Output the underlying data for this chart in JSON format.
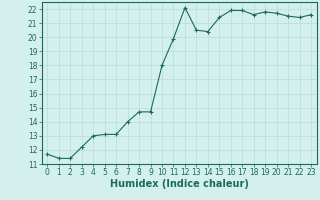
{
  "x": [
    0,
    1,
    2,
    3,
    4,
    5,
    6,
    7,
    8,
    9,
    10,
    11,
    12,
    13,
    14,
    15,
    16,
    17,
    18,
    19,
    20,
    21,
    22,
    23
  ],
  "y": [
    11.7,
    11.4,
    11.4,
    12.2,
    13.0,
    13.1,
    13.1,
    14.0,
    14.7,
    14.7,
    18.0,
    19.9,
    22.1,
    20.5,
    20.4,
    21.4,
    21.9,
    21.9,
    21.6,
    21.8,
    21.7,
    21.5,
    21.4,
    21.6
  ],
  "line_color": "#1a6b5a",
  "marker": "+",
  "marker_size": 3,
  "bg_color": "#d4f0ec",
  "grid_color": "#b8ddd8",
  "xlabel": "Humidex (Indice chaleur)",
  "xlim": [
    -0.5,
    23.5
  ],
  "ylim": [
    11,
    22.5
  ],
  "yticks": [
    11,
    12,
    13,
    14,
    15,
    16,
    17,
    18,
    19,
    20,
    21,
    22
  ],
  "xticks": [
    0,
    1,
    2,
    3,
    4,
    5,
    6,
    7,
    8,
    9,
    10,
    11,
    12,
    13,
    14,
    15,
    16,
    17,
    18,
    19,
    20,
    21,
    22,
    23
  ],
  "tick_fontsize": 5.5,
  "label_fontsize": 7
}
